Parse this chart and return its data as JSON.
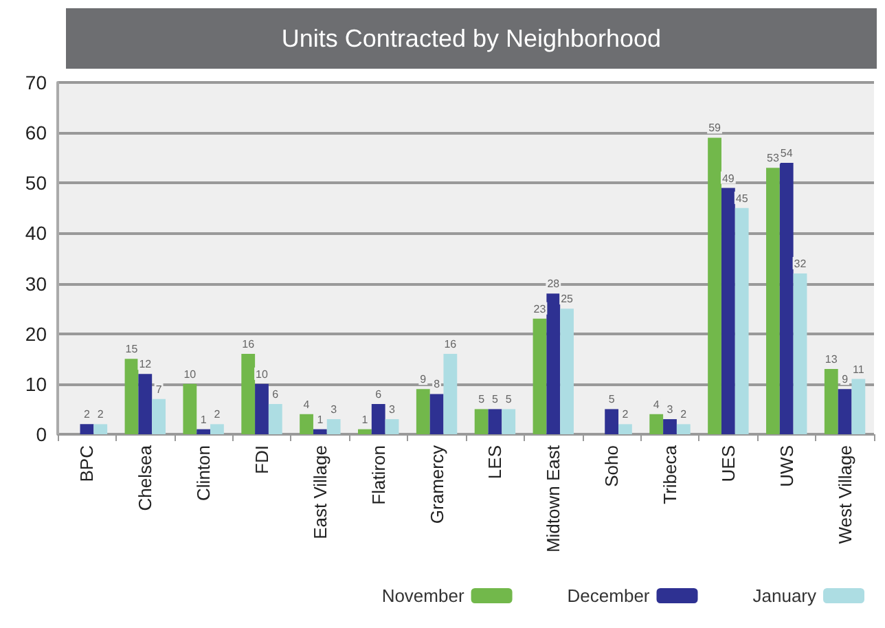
{
  "chart_data": {
    "type": "bar",
    "title": "Units Contracted by Neighborhood",
    "categories": [
      "BPC",
      "Chelsea",
      "Clinton",
      "FDI",
      "East Village",
      "Flatiron",
      "Gramercy",
      "LES",
      "Midtown East",
      "Soho",
      "Tribeca",
      "UES",
      "UWS",
      "West Village"
    ],
    "series": [
      {
        "name": "November",
        "color": "#72b84b",
        "values": [
          null,
          15,
          10,
          16,
          4,
          1,
          9,
          5,
          23,
          null,
          4,
          59,
          53,
          13
        ]
      },
      {
        "name": "December",
        "color": "#2e3192",
        "values": [
          2,
          12,
          1,
          10,
          1,
          6,
          8,
          5,
          28,
          5,
          3,
          49,
          54,
          9
        ]
      },
      {
        "name": "January",
        "color": "#addde3",
        "values": [
          2,
          7,
          2,
          6,
          3,
          3,
          16,
          5,
          25,
          2,
          2,
          45,
          32,
          11
        ]
      }
    ],
    "ylim": [
      0,
      70
    ],
    "yticks": [
      0,
      10,
      20,
      30,
      40,
      50,
      60,
      70
    ],
    "data_labels": true,
    "grid": "y",
    "legend": "bottom right"
  }
}
